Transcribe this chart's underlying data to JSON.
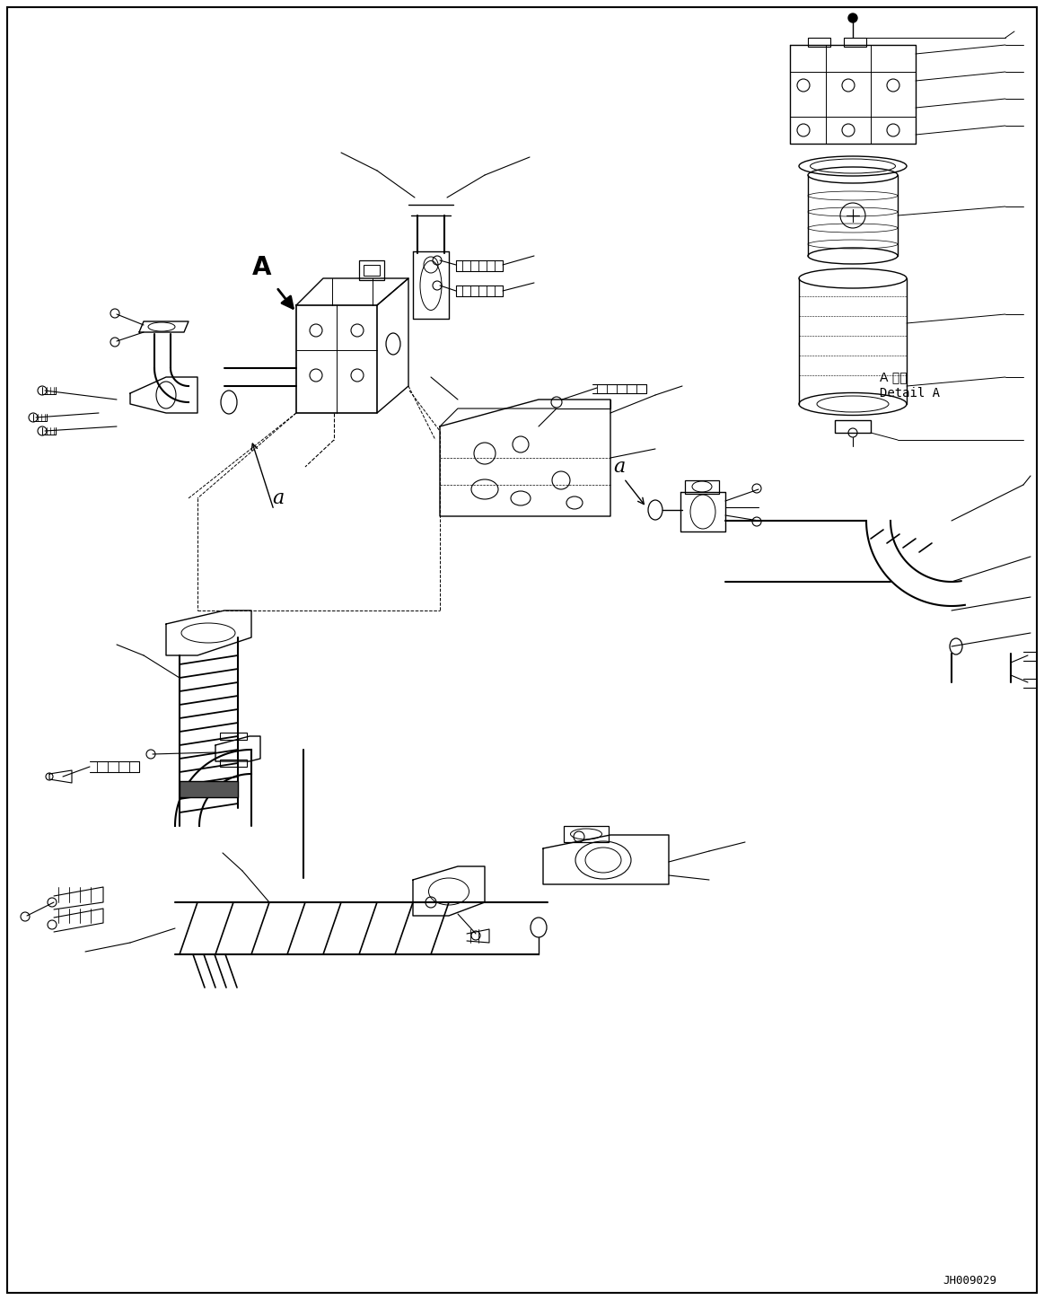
{
  "figsize": [
    11.63,
    14.48
  ],
  "dpi": 100,
  "bg_color": "#ffffff",
  "part_code": "JH009029",
  "detail_label_jp": "A 詳細",
  "detail_label_en": "Detail A",
  "label_A": "A",
  "label_a1": "a",
  "label_a2": "a",
  "lw": 1.0
}
